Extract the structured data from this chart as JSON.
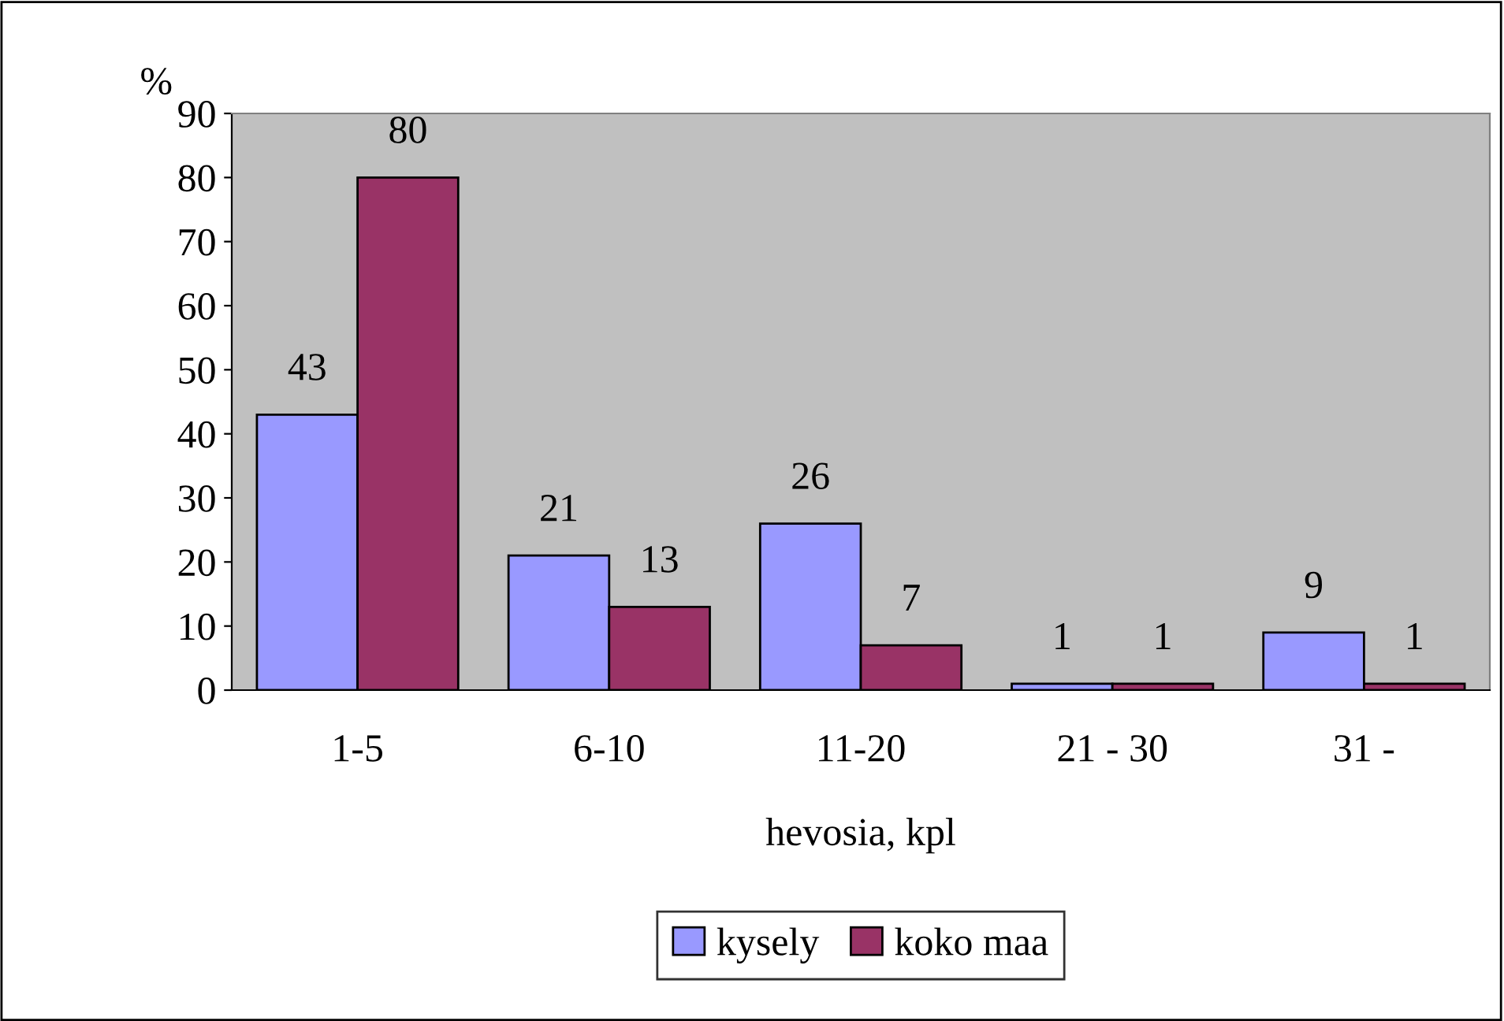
{
  "chart_data": {
    "type": "bar",
    "xlabel": "hevosia, kpl",
    "ylabel": "%",
    "categories": [
      "1-5",
      "6-10",
      "11-20",
      "21 - 30",
      "31 -"
    ],
    "series": [
      {
        "name": "kysely",
        "color": "#9999ff",
        "values": [
          43,
          21,
          26,
          1,
          9
        ]
      },
      {
        "name": "koko maa",
        "color": "#993366",
        "values": [
          80,
          13,
          7,
          1,
          1
        ]
      }
    ],
    "ylim": [
      0,
      90
    ],
    "yticks": [
      0,
      10,
      20,
      30,
      40,
      50,
      60,
      70,
      80,
      90
    ],
    "data_labels": true,
    "grid": false,
    "legend": "bottom"
  }
}
